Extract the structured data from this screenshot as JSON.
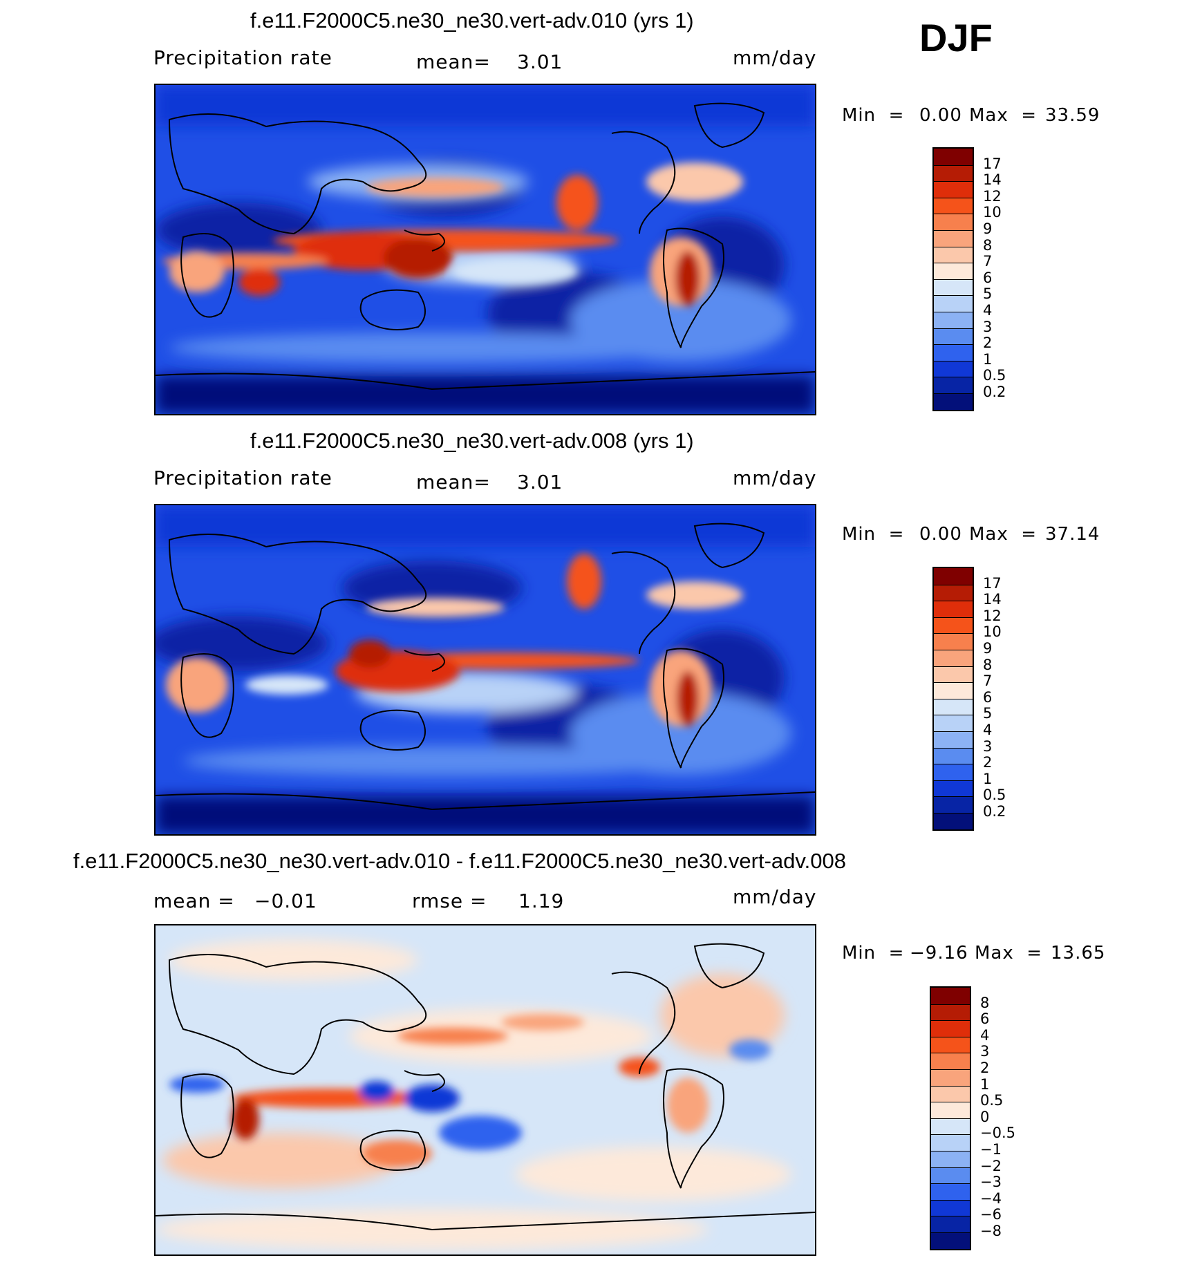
{
  "season": "DJF",
  "units": "mm/day",
  "panels": [
    {
      "title": "f.e11.F2000C5.ne30_ne30.vert-adv.010 (yrs 1)",
      "left_label": "Precipitation  rate",
      "mid_label": "mean=",
      "mid_value": "3.01",
      "min_label": "Min  =",
      "min_value": "0.00",
      "max_label": "Max  =",
      "max_value": "33.59"
    },
    {
      "title": "f.e11.F2000C5.ne30_ne30.vert-adv.008 (yrs 1)",
      "left_label": "Precipitation  rate",
      "mid_label": "mean=",
      "mid_value": "3.01",
      "min_label": "Min  =",
      "min_value": "0.00",
      "max_label": "Max  =",
      "max_value": "37.14"
    },
    {
      "title": "f.e11.F2000C5.ne30_ne30.vert-adv.010 - f.e11.F2000C5.ne30_ne30.vert-adv.008",
      "left_label": "mean  =",
      "left_value": "−0.01",
      "mid_label": "rmse  =",
      "mid_value": "1.19",
      "min_label": "Min  =",
      "min_value": "−9.16",
      "max_label": "Max  =",
      "max_value": "13.65"
    }
  ],
  "colorbars": {
    "precip": {
      "labels": [
        "17",
        "14",
        "12",
        "10",
        "9",
        "8",
        "7",
        "6",
        "5",
        "4",
        "3",
        "2",
        "1",
        "0.5",
        "0.2"
      ],
      "colors": [
        "#7f0000",
        "#b51c05",
        "#df2e0a",
        "#f5531a",
        "#f7804d",
        "#f9a47c",
        "#fbc8ab",
        "#fde9da",
        "#d6e6f8",
        "#b8d2f7",
        "#8cb2f4",
        "#5a8cf0",
        "#2f62ee",
        "#1038d6",
        "#0724a5",
        "#03107a"
      ]
    },
    "diff": {
      "labels": [
        "8",
        "6",
        "4",
        "3",
        "2",
        "1",
        "0.5",
        "0",
        "−0.5",
        "−1",
        "−2",
        "−3",
        "−4",
        "−6",
        "−8"
      ],
      "colors": [
        "#7f0000",
        "#b51c05",
        "#df2e0a",
        "#f5531a",
        "#f7804d",
        "#f9a47c",
        "#fbc8ab",
        "#fde9da",
        "#d6e6f8",
        "#b8d2f7",
        "#8cb2f4",
        "#5a8cf0",
        "#2f62ee",
        "#1038d6",
        "#0724a5",
        "#03107a"
      ]
    }
  }
}
